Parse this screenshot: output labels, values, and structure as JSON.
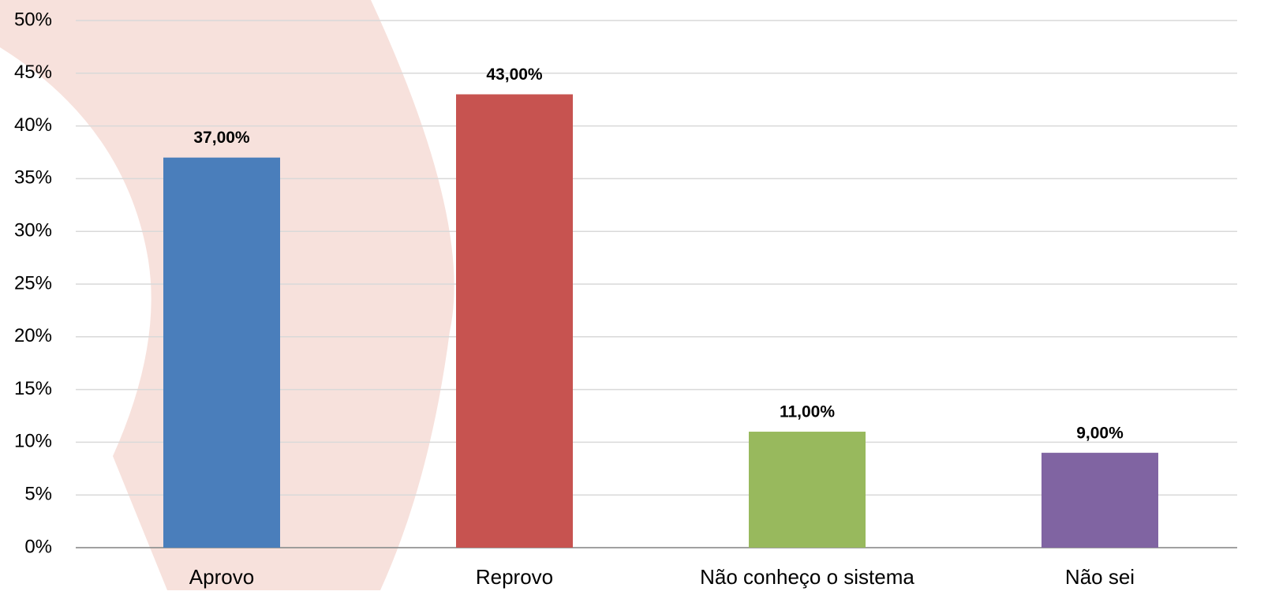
{
  "chart_data": {
    "type": "bar",
    "categories": [
      "Aprovo",
      "Reprovo",
      "Não conheço o sistema",
      "Não sei"
    ],
    "values": [
      37,
      43,
      11,
      9
    ],
    "value_labels": [
      "37,00%",
      "43,00%",
      "11,00%",
      "9,00%"
    ],
    "colors": [
      "#4a7ebb",
      "#c75350",
      "#98b95d",
      "#8064a2"
    ],
    "ylim": [
      0,
      50
    ],
    "yticks": [
      {
        "value": 0,
        "label": "0%"
      },
      {
        "value": 5,
        "label": "5%"
      },
      {
        "value": 10,
        "label": "10%"
      },
      {
        "value": 15,
        "label": "15%"
      },
      {
        "value": 20,
        "label": "20%"
      },
      {
        "value": 25,
        "label": "25%"
      },
      {
        "value": 30,
        "label": "30%"
      },
      {
        "value": 35,
        "label": "35%"
      },
      {
        "value": 40,
        "label": "40%"
      },
      {
        "value": 45,
        "label": "45%"
      },
      {
        "value": 50,
        "label": "50%"
      }
    ],
    "grid": true
  }
}
